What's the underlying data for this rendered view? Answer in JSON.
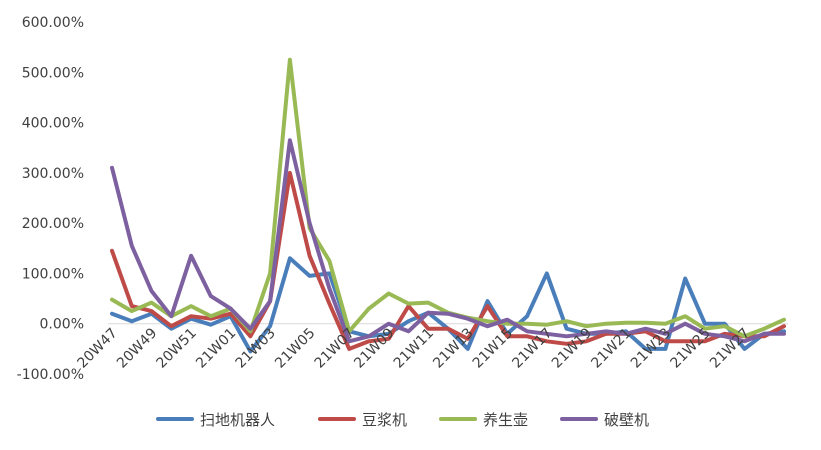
{
  "chart_data": {
    "type": "line",
    "title": "",
    "xlabel": "",
    "ylabel": "",
    "ylim": [
      -100,
      600
    ],
    "y_ticks": [
      "-100.00%",
      "0.00%",
      "100.00%",
      "200.00%",
      "300.00%",
      "400.00%",
      "500.00%",
      "600.00%"
    ],
    "y_tick_values": [
      -100,
      0,
      100,
      200,
      300,
      400,
      500,
      600
    ],
    "x_tick_labels": [
      "20W47",
      "20W49",
      "20W51",
      "21W01",
      "21W03",
      "21W05",
      "21W07",
      "21W09",
      "21W11",
      "21W13",
      "21W15",
      "21W17",
      "21W19",
      "21W21",
      "21W23",
      "21W25",
      "21W27"
    ],
    "x_tick_every": 2,
    "num_points": 35,
    "legend_position": "bottom",
    "grid": false,
    "series": [
      {
        "name": "扫地机器人",
        "color": "#4a7ebb",
        "values": [
          20,
          5,
          20,
          -10,
          10,
          -2,
          15,
          -55,
          -5,
          130,
          95,
          100,
          -15,
          -25,
          -20,
          5,
          22,
          -10,
          -50,
          45,
          -20,
          15,
          100,
          -10,
          -20,
          -20,
          -15,
          -50,
          -50,
          90,
          0,
          0,
          -50,
          -20,
          -15
        ]
      },
      {
        "name": "豆浆机",
        "color": "#be4b48",
        "values": [
          145,
          35,
          25,
          -5,
          15,
          10,
          20,
          -25,
          45,
          300,
          135,
          40,
          -50,
          -35,
          -30,
          35,
          -10,
          -10,
          -30,
          35,
          -25,
          -25,
          -35,
          -40,
          -35,
          -20,
          -20,
          -15,
          -35,
          -35,
          -35,
          -20,
          -25,
          -25,
          -5
        ]
      },
      {
        "name": "养生壶",
        "color": "#98b954",
        "values": [
          48,
          25,
          42,
          15,
          35,
          15,
          30,
          -15,
          100,
          525,
          190,
          125,
          -15,
          30,
          60,
          40,
          42,
          22,
          12,
          5,
          0,
          0,
          -2,
          5,
          -5,
          0,
          2,
          2,
          0,
          15,
          -10,
          -5,
          -25,
          -10,
          8
        ]
      },
      {
        "name": "破壁机",
        "color": "#7d60a0",
        "values": [
          310,
          155,
          65,
          15,
          135,
          55,
          30,
          -10,
          45,
          365,
          200,
          70,
          -35,
          -25,
          0,
          -15,
          22,
          20,
          10,
          -5,
          8,
          -15,
          -20,
          -25,
          -20,
          -15,
          -20,
          -10,
          -20,
          0,
          -20,
          -25,
          -35,
          -20,
          -20
        ]
      }
    ]
  }
}
